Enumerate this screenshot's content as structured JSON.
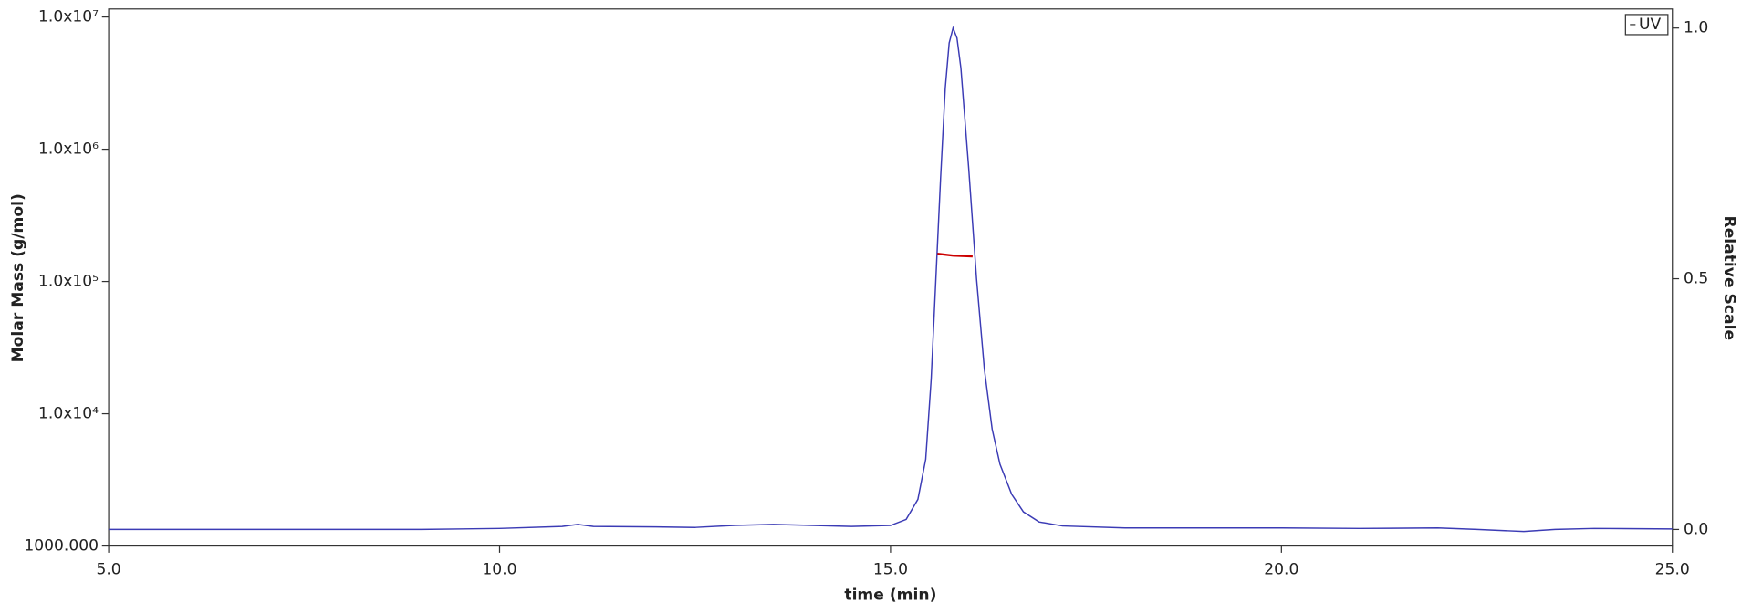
{
  "chart_data": {
    "type": "line",
    "xlabel": "time (min)",
    "ylabel": "Molar Mass (g/mol)",
    "y2label": "Relative Scale",
    "xlim": [
      5,
      25
    ],
    "xticks": [
      {
        "value": 5,
        "label": "5.0"
      },
      {
        "value": 10,
        "label": "10.0"
      },
      {
        "value": 15,
        "label": "15.0"
      },
      {
        "value": 20,
        "label": "20.0"
      },
      {
        "value": 25,
        "label": "25.0"
      }
    ],
    "ylim": [
      1000,
      11500000
    ],
    "yscale": "log",
    "yticks": [
      {
        "value": 1000,
        "label": "1000.000"
      },
      {
        "value": 10000,
        "label": "1.0x10⁴"
      },
      {
        "value": 100000,
        "label": "1.0x10⁵"
      },
      {
        "value": 1000000,
        "label": "1.0x10⁶"
      },
      {
        "value": 10000000,
        "label": "1.0x10⁷"
      }
    ],
    "y2lim": [
      -0.033,
      1.038
    ],
    "y2ticks": [
      {
        "value": 0,
        "label": "0.0"
      },
      {
        "value": 0.5,
        "label": "0.5"
      },
      {
        "value": 1,
        "label": "1.0"
      }
    ],
    "legend": "upper right",
    "series": [
      {
        "name": "UV",
        "color": "#3b3bb5",
        "axis": "y2",
        "x": [
          5.0,
          9.0,
          10.0,
          10.8,
          11.0,
          11.2,
          12.0,
          12.5,
          13.0,
          13.5,
          14.0,
          14.5,
          15.0,
          15.2,
          15.35,
          15.45,
          15.52,
          15.58,
          15.64,
          15.7,
          15.75,
          15.8,
          15.85,
          15.9,
          16.0,
          16.1,
          16.2,
          16.3,
          16.4,
          16.55,
          16.7,
          16.9,
          17.2,
          18.0,
          20.0,
          21.0,
          22.0,
          22.5,
          23.1,
          23.5,
          24.0,
          25.0
        ],
        "values": [
          0.0,
          0.0,
          0.002,
          0.006,
          0.01,
          0.006,
          0.005,
          0.004,
          0.008,
          0.01,
          0.008,
          0.006,
          0.008,
          0.02,
          0.06,
          0.14,
          0.3,
          0.5,
          0.7,
          0.88,
          0.97,
          1.0,
          0.98,
          0.92,
          0.72,
          0.5,
          0.32,
          0.2,
          0.13,
          0.07,
          0.035,
          0.015,
          0.007,
          0.003,
          0.003,
          0.002,
          0.003,
          0.0,
          -0.004,
          0.0,
          0.002,
          0.001
        ]
      },
      {
        "color": "#cc0000",
        "axis": "y",
        "x": [
          15.6,
          15.8,
          16.05
        ],
        "values": [
          162000,
          157000,
          155000
        ]
      }
    ]
  }
}
